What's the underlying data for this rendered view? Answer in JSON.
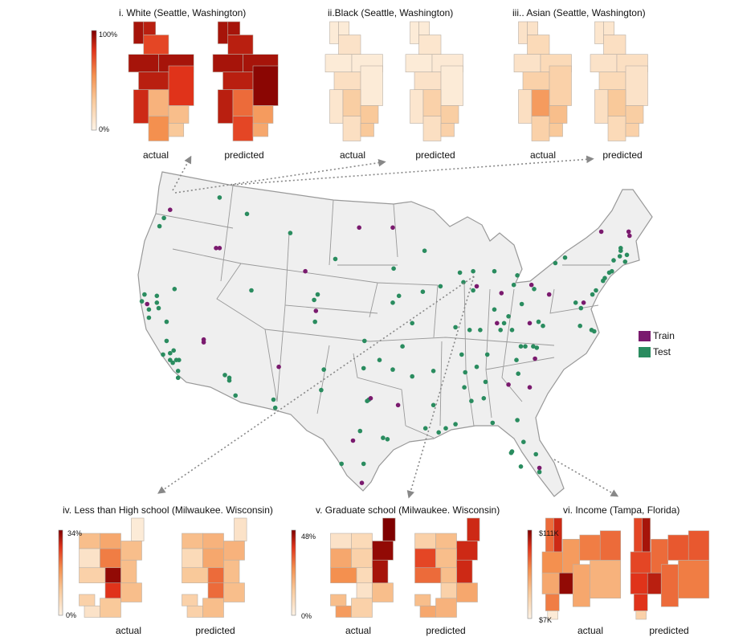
{
  "legend": {
    "train_label": "Train",
    "test_label": "Test",
    "train_color": "#7a1a6e",
    "test_color": "#2a8c5f"
  },
  "color_ramp": [
    "#fdf3e6",
    "#f9c99a",
    "#f4904f",
    "#e0331a",
    "#7f0000"
  ],
  "map": {
    "fill": "#efefef",
    "border": "#999999",
    "train_points": [
      [
        -121.2,
        46.4
      ],
      [
        -99.8,
        45.1
      ],
      [
        -96.0,
        45.1
      ],
      [
        -116.0,
        43.6
      ],
      [
        -115.6,
        43.6
      ],
      [
        -105.9,
        41.9
      ],
      [
        -104.7,
        39.0
      ],
      [
        -123.8,
        39.5
      ],
      [
        -86.5,
        40.8
      ],
      [
        -80.3,
        40.9
      ],
      [
        -83.7,
        40.3
      ],
      [
        -78.3,
        40.2
      ],
      [
        -80.5,
        38.1
      ],
      [
        -72.4,
        44.8
      ],
      [
        -69.3,
        44.8
      ],
      [
        -69.2,
        44.5
      ],
      [
        -74.4,
        39.6
      ],
      [
        -117.4,
        36.9
      ],
      [
        -117.4,
        36.7
      ],
      [
        -108.9,
        34.9
      ],
      [
        -98.5,
        32.6
      ],
      [
        -95.4,
        32.1
      ],
      [
        -100.5,
        29.5
      ],
      [
        -99.5,
        26.4
      ],
      [
        -84.2,
        38.1
      ],
      [
        -82.9,
        33.6
      ],
      [
        -80.5,
        33.4
      ],
      [
        -79.9,
        35.5
      ],
      [
        -79.4,
        27.5
      ]
    ],
    "test_points": [
      [
        -115.6,
        47.3
      ],
      [
        -121.9,
        45.8
      ],
      [
        -122.4,
        45.2
      ],
      [
        -112.5,
        46.1
      ],
      [
        -107.6,
        44.7
      ],
      [
        -102.5,
        42.8
      ],
      [
        -95.9,
        42.1
      ],
      [
        -112.0,
        40.5
      ],
      [
        -104.5,
        40.2
      ],
      [
        -104.9,
        39.8
      ],
      [
        -104.8,
        38.2
      ],
      [
        -120.7,
        40.6
      ],
      [
        -96.0,
        39.6
      ],
      [
        -95.3,
        40.1
      ],
      [
        -124.1,
        40.2
      ],
      [
        -124.4,
        39.7
      ],
      [
        -122.7,
        40.1
      ],
      [
        -122.7,
        39.6
      ],
      [
        -122.5,
        39.2
      ],
      [
        -123.6,
        39.1
      ],
      [
        -123.6,
        38.5
      ],
      [
        -121.6,
        38.2
      ],
      [
        -92.4,
        43.4
      ],
      [
        -88.4,
        41.8
      ],
      [
        -86.9,
        41.9
      ],
      [
        -88.0,
        41.1
      ],
      [
        -86.9,
        40.5
      ],
      [
        -84.5,
        41.9
      ],
      [
        -81.9,
        41.6
      ],
      [
        -82.3,
        40.9
      ],
      [
        -80.0,
        40.6
      ],
      [
        -81.4,
        39.5
      ],
      [
        -84.5,
        39.1
      ],
      [
        -82.9,
        38.6
      ],
      [
        -79.5,
        38.2
      ],
      [
        -83.8,
        37.6
      ],
      [
        -82.5,
        37.6
      ],
      [
        -92.6,
        40.4
      ],
      [
        -90.6,
        40.8
      ],
      [
        -93.8,
        38.1
      ],
      [
        -88.9,
        37.8
      ],
      [
        -77.6,
        42.5
      ],
      [
        -76.5,
        42.9
      ],
      [
        -70.2,
        43.6
      ],
      [
        -70.2,
        43.4
      ],
      [
        -70.3,
        43.0
      ],
      [
        -69.5,
        43.1
      ],
      [
        -71.0,
        42.7
      ],
      [
        -69.7,
        42.6
      ],
      [
        -71.2,
        41.9
      ],
      [
        -71.5,
        41.8
      ],
      [
        -72.0,
        41.4
      ],
      [
        -72.2,
        41.2
      ],
      [
        -73.0,
        40.5
      ],
      [
        -73.4,
        40.2
      ],
      [
        -75.3,
        39.6
      ],
      [
        -74.7,
        39.2
      ],
      [
        -74.8,
        37.9
      ],
      [
        -73.5,
        37.6
      ],
      [
        -73.2,
        37.5
      ],
      [
        -121.6,
        36.8
      ],
      [
        -122.0,
        35.8
      ],
      [
        -121.2,
        35.9
      ],
      [
        -120.8,
        36.1
      ],
      [
        -121.2,
        35.4
      ],
      [
        -120.5,
        35.4
      ],
      [
        -120.2,
        35.4
      ],
      [
        -120.9,
        35.2
      ],
      [
        -120.3,
        34.6
      ],
      [
        -120.3,
        34.1
      ],
      [
        -115.0,
        34.3
      ],
      [
        -114.5,
        34.1
      ],
      [
        -114.5,
        33.9
      ],
      [
        -113.8,
        32.8
      ],
      [
        -109.5,
        32.5
      ],
      [
        -109.3,
        31.9
      ],
      [
        -103.8,
        34.7
      ],
      [
        -104.1,
        33.2
      ],
      [
        -99.2,
        36.8
      ],
      [
        -94.9,
        36.4
      ],
      [
        -97.5,
        35.4
      ],
      [
        -99.3,
        34.8
      ],
      [
        -96.0,
        34.7
      ],
      [
        -93.8,
        34.2
      ],
      [
        -98.9,
        32.4
      ],
      [
        -98.7,
        32.5
      ],
      [
        -99.7,
        30.2
      ],
      [
        -97.1,
        29.7
      ],
      [
        -96.6,
        29.6
      ],
      [
        -101.8,
        27.8
      ],
      [
        -99.3,
        27.8
      ],
      [
        -91.4,
        34.6
      ],
      [
        -91.4,
        32.1
      ],
      [
        -92.3,
        30.4
      ],
      [
        -90.8,
        30.1
      ],
      [
        -90.0,
        30.4
      ],
      [
        -88.9,
        30.7
      ],
      [
        -87.8,
        34.5
      ],
      [
        -87.9,
        33.4
      ],
      [
        -87.1,
        32.4
      ],
      [
        -85.7,
        32.6
      ],
      [
        -85.5,
        33.8
      ],
      [
        -86.5,
        34.9
      ],
      [
        -88.2,
        35.8
      ],
      [
        -85.3,
        35.8
      ],
      [
        -87.3,
        37.6
      ],
      [
        -86.1,
        37.6
      ],
      [
        -83.4,
        38.1
      ],
      [
        -82.0,
        35.4
      ],
      [
        -81.8,
        34.4
      ],
      [
        -81.5,
        36.4
      ],
      [
        -81.0,
        36.4
      ],
      [
        -80.1,
        36.4
      ],
      [
        -79.7,
        36.3
      ],
      [
        -79.0,
        37.9
      ],
      [
        -84.7,
        30.8
      ],
      [
        -81.9,
        31.0
      ],
      [
        -81.2,
        29.4
      ],
      [
        -82.5,
        28.7
      ],
      [
        -82.6,
        28.6
      ],
      [
        -81.5,
        27.6
      ],
      [
        -79.8,
        28.5
      ],
      [
        -79.4,
        27.2
      ]
    ]
  },
  "panels": [
    {
      "title": "i. White (Seattle, Washington)",
      "legend_max": "100%",
      "legend_min": "0%",
      "actual_label": "actual",
      "predicted_label": "predicted",
      "actual": [
        0.9,
        0.85,
        0.7,
        0.9,
        0.9,
        0.85,
        0.75,
        0.8,
        0.35,
        0.3,
        0.5,
        0.25
      ],
      "predicted": [
        0.9,
        0.9,
        0.85,
        0.9,
        0.9,
        0.85,
        0.97,
        0.85,
        0.6,
        0.45,
        0.7,
        0.4
      ]
    },
    {
      "title": "ii.Black (Seattle, Washington)",
      "actual_label": "actual",
      "predicted_label": "predicted",
      "actual": [
        0.05,
        0.05,
        0.1,
        0.05,
        0.05,
        0.12,
        0.05,
        0.08,
        0.22,
        0.25,
        0.12,
        0.25
      ],
      "predicted": [
        0.05,
        0.05,
        0.08,
        0.05,
        0.06,
        0.1,
        0.05,
        0.08,
        0.2,
        0.22,
        0.12,
        0.2
      ]
    },
    {
      "title": "iii.. Asian (Seattle, Washington)",
      "actual_label": "actual",
      "predicted_label": "predicted",
      "actual": [
        0.1,
        0.1,
        0.15,
        0.1,
        0.15,
        0.2,
        0.2,
        0.12,
        0.45,
        0.3,
        0.2,
        0.25
      ],
      "predicted": [
        0.08,
        0.08,
        0.12,
        0.1,
        0.12,
        0.15,
        0.1,
        0.12,
        0.25,
        0.22,
        0.15,
        0.2
      ]
    },
    {
      "title": "iv. Less than High school   (Milwaukee. Wisconsin)",
      "legend_max": "34%",
      "legend_min": "0%",
      "actual_label": "actual",
      "predicted_label": "predicted",
      "actual": [
        0.05,
        0.3,
        0.4,
        0.3,
        0.1,
        0.55,
        0.3,
        0.2,
        0.95,
        0.75,
        0.3,
        0.2,
        0.1,
        0.25
      ],
      "predicted": [
        0.1,
        0.3,
        0.35,
        0.35,
        0.15,
        0.4,
        0.3,
        0.25,
        0.6,
        0.6,
        0.3,
        0.2,
        0.2,
        0.3
      ]
    },
    {
      "title": "v. Graduate school  (Milwaukee. Wisconsin)",
      "legend_max": "48%",
      "legend_min": "0%",
      "actual_label": "actual",
      "predicted_label": "predicted",
      "actual": [
        1.0,
        0.1,
        0.15,
        0.95,
        0.4,
        0.2,
        0.9,
        0.5,
        0.15,
        0.1,
        0.3,
        0.3,
        0.45,
        0.2
      ],
      "predicted": [
        0.8,
        0.2,
        0.3,
        0.8,
        0.7,
        0.3,
        0.8,
        0.6,
        0.3,
        0.2,
        0.4,
        0.3,
        0.4,
        0.35
      ]
    },
    {
      "title": "vi. Income (Tampa, Florida)",
      "legend_max": "$111K",
      "legend_min": "$7K",
      "actual_label": "actual",
      "predicted_label": "predicted",
      "actual": [
        0.6,
        0.8,
        0.5,
        0.45,
        0.55,
        0.6,
        0.4,
        0.95,
        0.4,
        0.35,
        0.55,
        0.05
      ],
      "predicted": [
        0.7,
        0.9,
        0.7,
        0.6,
        0.65,
        0.65,
        0.75,
        0.85,
        0.6,
        0.55,
        0.75,
        0.2
      ]
    }
  ]
}
